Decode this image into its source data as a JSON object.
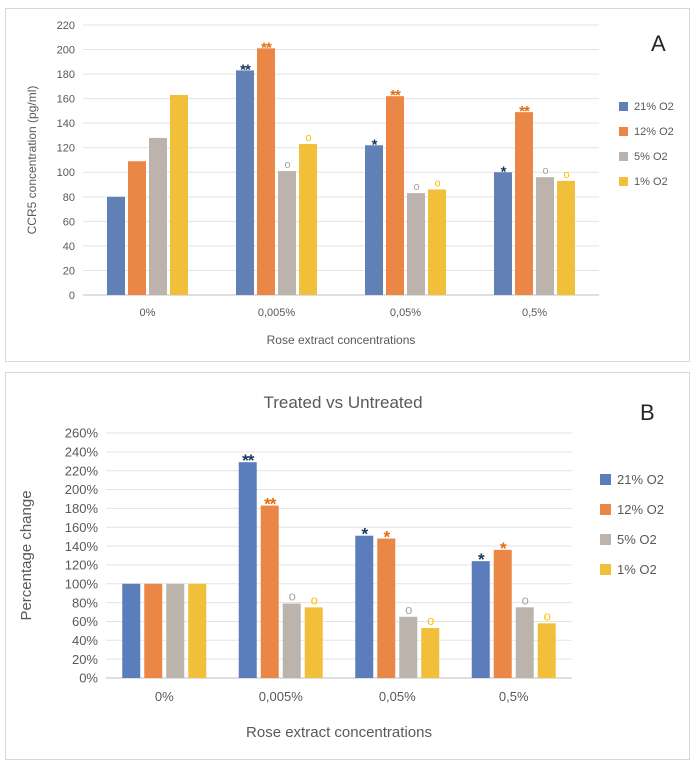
{
  "chart_data": [
    {
      "type": "bar",
      "panel_letter": "A",
      "title": "",
      "xlabel": "Rose extract concentrations",
      "ylabel": "CCR5 concentration (pg/ml)",
      "categories": [
        "0%",
        "0,005%",
        "0,05%",
        "0,5%"
      ],
      "ylim": [
        0,
        220
      ],
      "yticks": [
        0,
        20,
        40,
        60,
        80,
        100,
        120,
        140,
        160,
        180,
        200,
        220
      ],
      "ytick_labels": [
        "0",
        "20",
        "40",
        "60",
        "80",
        "100",
        "120",
        "140",
        "160",
        "180",
        "200",
        "220"
      ],
      "grid": true,
      "legend_position": "right",
      "series": [
        {
          "name": "21% O2",
          "color": "#6080b6",
          "values": [
            80,
            183,
            122,
            100
          ],
          "markers": [
            "",
            "**",
            "*",
            "*"
          ],
          "marker_color": "#17375e"
        },
        {
          "name": "12% O2",
          "color": "#ea8747",
          "values": [
            109,
            201,
            162,
            149
          ],
          "markers": [
            "",
            "**",
            "**",
            "**"
          ],
          "marker_color": "#e46c0a"
        },
        {
          "name": "5% O2",
          "color": "#bcb3ac",
          "values": [
            128,
            101,
            83,
            96
          ],
          "markers": [
            "",
            "o",
            "o",
            "o"
          ],
          "marker_color": "#a6a6a6"
        },
        {
          "name": "1% O2",
          "color": "#f2bf3a",
          "values": [
            163,
            123,
            86,
            93
          ],
          "markers": [
            "",
            "o",
            "o",
            "o"
          ],
          "marker_color": "#ffc000"
        }
      ]
    },
    {
      "type": "bar",
      "panel_letter": "B",
      "title": "Treated vs Untreated",
      "xlabel": "Rose extract concentrations",
      "ylabel": "Percentage change",
      "categories": [
        "0%",
        "0,005%",
        "0,05%",
        "0,5%"
      ],
      "ylim": [
        0,
        260
      ],
      "yticks": [
        0,
        20,
        40,
        60,
        80,
        100,
        120,
        140,
        160,
        180,
        200,
        220,
        240,
        260
      ],
      "ytick_labels": [
        "0%",
        "20%",
        "40%",
        "60%",
        "80%",
        "100%",
        "120%",
        "140%",
        "160%",
        "180%",
        "200%",
        "220%",
        "240%",
        "260%"
      ],
      "grid": true,
      "legend_position": "right",
      "series": [
        {
          "name": "21% O2",
          "color": "#5b7dbb",
          "values": [
            100,
            229,
            151,
            124
          ],
          "markers": [
            "",
            "**",
            "*",
            "*"
          ],
          "marker_color": "#17375e"
        },
        {
          "name": "12% O2",
          "color": "#ea8747",
          "values": [
            100,
            183,
            148,
            136
          ],
          "markers": [
            "",
            "**",
            "*",
            "*"
          ],
          "marker_color": "#e46c0a"
        },
        {
          "name": "5% O2",
          "color": "#bcb3ac",
          "values": [
            100,
            79,
            65,
            75
          ],
          "markers": [
            "",
            "o",
            "o",
            "o"
          ],
          "marker_color": "#a6a6a6"
        },
        {
          "name": "1% O2",
          "color": "#f2bf3a",
          "values": [
            100,
            75,
            53,
            58
          ],
          "markers": [
            "",
            "o",
            "o",
            "o"
          ],
          "marker_color": "#ffc000"
        }
      ]
    }
  ]
}
